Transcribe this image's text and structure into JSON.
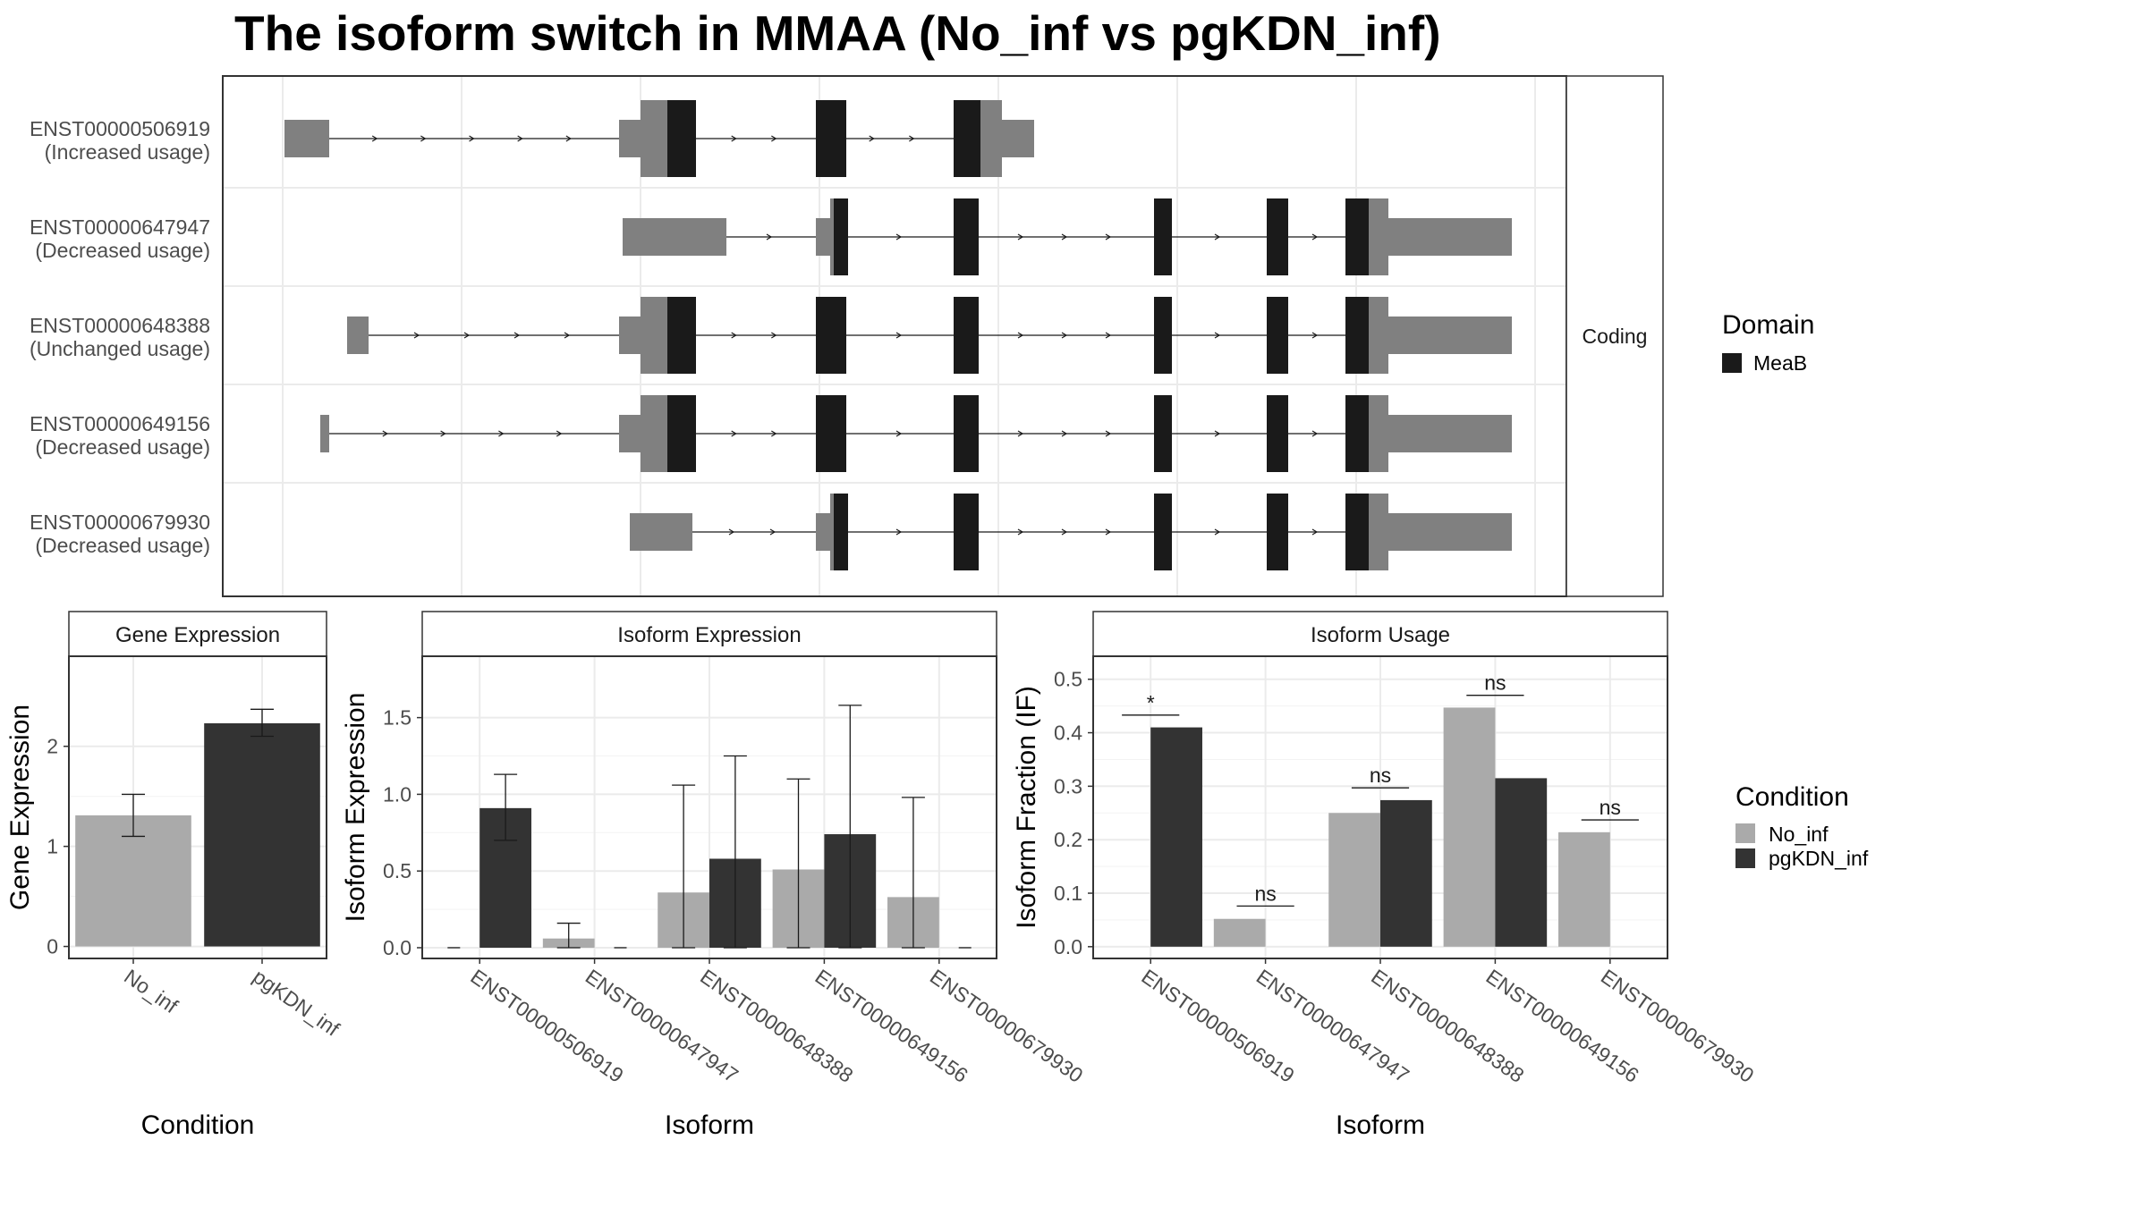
{
  "figure": {
    "title": "The isoform switch in MMAA (No_inf vs pgKDN_inf)"
  },
  "structure_panel": {
    "strip_label": "Coding",
    "rows": [
      {
        "id": "ENST00000506919",
        "label": "(Increased usage)"
      },
      {
        "id": "ENST00000647947",
        "label": "(Decreased usage)"
      },
      {
        "id": "ENST00000648388",
        "label": "(Unchanged usage)"
      },
      {
        "id": "ENST00000649156",
        "label": "(Decreased usage)"
      },
      {
        "id": "ENST00000679930",
        "label": "(Decreased usage)"
      }
    ]
  },
  "legends": {
    "domain": {
      "title": "Domain",
      "items": [
        {
          "label": "MeaB",
          "color": "#1a1a1a"
        }
      ]
    },
    "condition": {
      "title": "Condition",
      "items": [
        {
          "label": "No_inf",
          "color": "#aaaaaa"
        },
        {
          "label": "pgKDN_inf",
          "color": "#333333"
        }
      ]
    }
  },
  "chart_data": [
    {
      "type": "bar",
      "title": "Gene Expression",
      "xlabel": "Condition",
      "ylabel": "Gene Expression",
      "categories": [
        "No_inf",
        "pgKDN_inf"
      ],
      "values": [
        1.31,
        2.23
      ],
      "error": [
        [
          1.1,
          1.52
        ],
        [
          2.1,
          2.37
        ]
      ],
      "colors": [
        "#aaaaaa",
        "#333333"
      ],
      "ylim": [
        -0.12,
        2.9
      ],
      "yticks": [
        0,
        1,
        2
      ],
      "ytick_labels": [
        "0",
        "1",
        "2"
      ],
      "grid": true
    },
    {
      "type": "bar",
      "title": "Isoform Expression",
      "xlabel": "Isoform",
      "ylabel": "Isoform Expression",
      "categories": [
        "ENST00000506919",
        "ENST00000647947",
        "ENST00000648388",
        "ENST00000649156",
        "ENST00000679930"
      ],
      "series": [
        {
          "name": "No_inf",
          "values": [
            0.0,
            0.06,
            0.36,
            0.51,
            0.33
          ],
          "error": [
            [
              0.0,
              0.0
            ],
            [
              0.0,
              0.16
            ],
            [
              0.0,
              1.06
            ],
            [
              0.0,
              1.1
            ],
            [
              0.0,
              0.98
            ]
          ]
        },
        {
          "name": "pgKDN_inf",
          "values": [
            0.91,
            0.0,
            0.58,
            0.74,
            0.0
          ],
          "error": [
            [
              0.7,
              1.13
            ],
            [
              0.0,
              0.0
            ],
            [
              0.0,
              1.25
            ],
            [
              0.0,
              1.58
            ],
            [
              0.0,
              0.0
            ]
          ]
        }
      ],
      "ylim": [
        -0.07,
        1.9
      ],
      "yticks": [
        0,
        0.5,
        1.0,
        1.5
      ],
      "ytick_labels": [
        "0.0",
        "0.5",
        "1.0",
        "1.5"
      ],
      "grid": true
    },
    {
      "type": "bar",
      "title": "Isoform Usage",
      "xlabel": "Isoform",
      "ylabel": "Isoform Fraction (IF)",
      "categories": [
        "ENST00000506919",
        "ENST00000647947",
        "ENST00000648388",
        "ENST00000649156",
        "ENST00000679930"
      ],
      "series": [
        {
          "name": "No_inf",
          "values": [
            0.0,
            0.052,
            0.25,
            0.447,
            0.214
          ]
        },
        {
          "name": "pgKDN_inf",
          "values": [
            0.41,
            0.0,
            0.274,
            0.315,
            0.0
          ]
        }
      ],
      "significance": [
        {
          "label": "*",
          "y": 0.433
        },
        {
          "label": "ns",
          "y": 0.076
        },
        {
          "label": "ns",
          "y": 0.297
        },
        {
          "label": "ns",
          "y": 0.47
        },
        {
          "label": "ns",
          "y": 0.237
        }
      ],
      "ylim": [
        -0.022,
        0.543
      ],
      "yticks": [
        0,
        0.1,
        0.2,
        0.3,
        0.4,
        0.5
      ],
      "ytick_labels": [
        "0.0",
        "0.1",
        "0.2",
        "0.3",
        "0.4",
        "0.5"
      ],
      "grid": true
    }
  ]
}
